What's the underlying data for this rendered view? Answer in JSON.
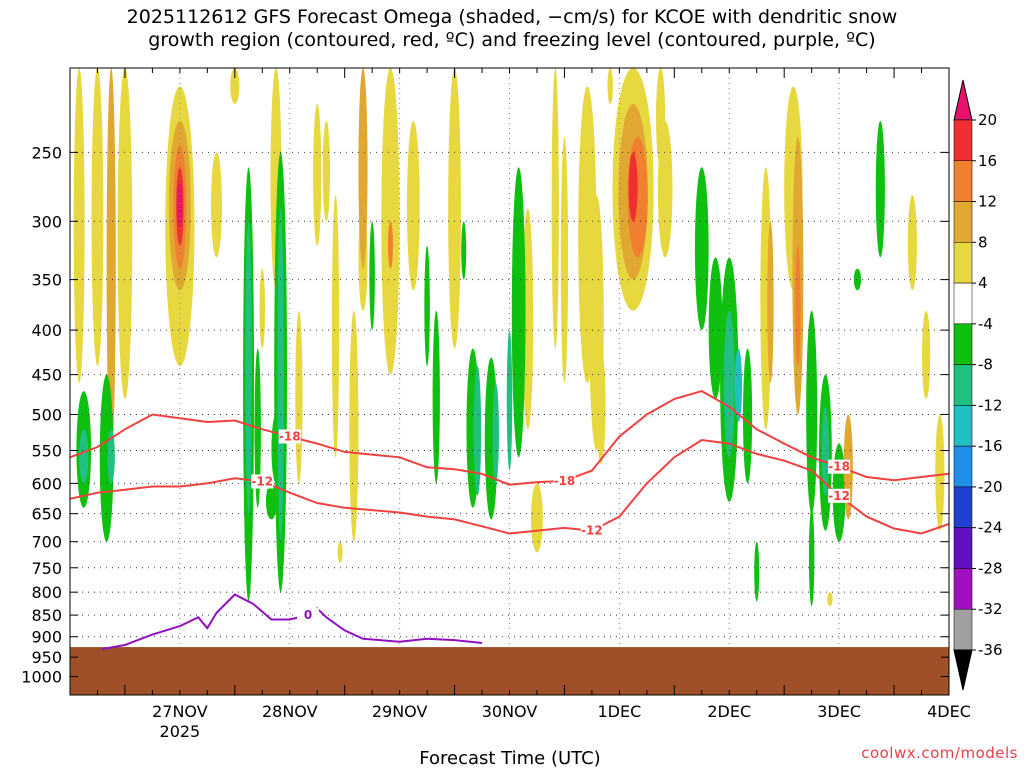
{
  "title": {
    "line1": "2025112612 GFS Forecast Omega (shaded, −cm/s) for KCOE with dendritic snow",
    "line2": "growth region (contoured, red, ºC) and freezing level (contoured, purple, ºC)"
  },
  "footer": "coolwx.com/models",
  "chart_data": {
    "type": "heatmap",
    "title": "2025112612 GFS Forecast Omega (shaded, −cm/s) for KCOE with dendritic snow growth region (contoured, red, ºC) and freezing level (contoured, purple, ºC)",
    "xlabel": "Forecast Time (UTC)",
    "ylabel": "",
    "x_range_hours": [
      -12,
      180
    ],
    "x_ticks": [
      {
        "label": "27NOV",
        "sublabel": "2025",
        "hour": 12
      },
      {
        "label": "28NOV",
        "hour": 36
      },
      {
        "label": "29NOV",
        "hour": 60
      },
      {
        "label": "30NOV",
        "hour": 84
      },
      {
        "label": "1DEC",
        "hour": 108
      },
      {
        "label": "2DEC",
        "hour": 132
      },
      {
        "label": "3DEC",
        "hour": 156
      },
      {
        "label": "4DEC",
        "hour": 180
      }
    ],
    "y_scale": "log",
    "y_range_hPa": [
      200,
      1050
    ],
    "y_ticks": [
      250,
      300,
      350,
      400,
      450,
      500,
      550,
      600,
      650,
      700,
      750,
      800,
      850,
      900,
      950,
      1000
    ],
    "grid": true,
    "colorbar": {
      "labels": [
        20,
        16,
        12,
        8,
        4,
        -4,
        -8,
        -12,
        -16,
        -20,
        -24,
        -28,
        -32,
        -36
      ],
      "colors": [
        "#e8116b",
        "#f03030",
        "#f08030",
        "#e0a830",
        "#e8d840",
        "#ffffff",
        "#10c010",
        "#20c080",
        "#20c0c0",
        "#2090e8",
        "#2040d0",
        "#6010c0",
        "#a010c0",
        "#a0a0a0",
        "#000000"
      ]
    },
    "surface_pressure_hPa": 925,
    "contours": [
      {
        "label": "-18",
        "color": "#f04040",
        "points": [
          [
            -12,
            560
          ],
          [
            -6,
            545
          ],
          [
            0,
            520
          ],
          [
            6,
            500
          ],
          [
            12,
            505
          ],
          [
            18,
            510
          ],
          [
            24,
            508
          ],
          [
            30,
            520
          ],
          [
            36,
            530
          ],
          [
            42,
            540
          ],
          [
            48,
            552
          ],
          [
            60,
            560
          ],
          [
            66,
            575
          ],
          [
            72,
            578
          ],
          [
            78,
            585
          ],
          [
            84,
            602
          ],
          [
            90,
            598
          ],
          [
            96,
            596
          ],
          [
            102,
            580
          ],
          [
            108,
            530
          ],
          [
            114,
            500
          ],
          [
            120,
            480
          ],
          [
            126,
            470
          ],
          [
            132,
            490
          ],
          [
            138,
            520
          ],
          [
            144,
            540
          ],
          [
            150,
            560
          ],
          [
            156,
            574
          ],
          [
            162,
            590
          ],
          [
            168,
            595
          ],
          [
            174,
            590
          ],
          [
            180,
            585
          ]
        ]
      },
      {
        "label": "-12",
        "color": "#f04040",
        "points": [
          [
            -12,
            625
          ],
          [
            -6,
            615
          ],
          [
            0,
            610
          ],
          [
            6,
            605
          ],
          [
            12,
            605
          ],
          [
            18,
            600
          ],
          [
            24,
            592
          ],
          [
            30,
            597
          ],
          [
            36,
            615
          ],
          [
            42,
            632
          ],
          [
            48,
            640
          ],
          [
            60,
            648
          ],
          [
            66,
            655
          ],
          [
            72,
            660
          ],
          [
            78,
            672
          ],
          [
            84,
            685
          ],
          [
            96,
            675
          ],
          [
            102,
            680
          ],
          [
            108,
            655
          ],
          [
            114,
            600
          ],
          [
            120,
            560
          ],
          [
            126,
            535
          ],
          [
            132,
            540
          ],
          [
            138,
            555
          ],
          [
            144,
            565
          ],
          [
            150,
            580
          ],
          [
            156,
            620
          ],
          [
            162,
            655
          ],
          [
            168,
            676
          ],
          [
            174,
            685
          ],
          [
            180,
            668
          ]
        ]
      },
      {
        "label": "0",
        "color": "#9010c0",
        "points": [
          [
            -5,
            930
          ],
          [
            0,
            920
          ],
          [
            6,
            895
          ],
          [
            12,
            875
          ],
          [
            16,
            855
          ],
          [
            18,
            880
          ],
          [
            20,
            845
          ],
          [
            24,
            805
          ],
          [
            28,
            825
          ],
          [
            32,
            860
          ],
          [
            36,
            860
          ],
          [
            40,
            850
          ],
          [
            42,
            835
          ],
          [
            44,
            855
          ],
          [
            48,
            885
          ],
          [
            52,
            905
          ],
          [
            60,
            912
          ],
          [
            66,
            905
          ],
          [
            72,
            908
          ],
          [
            78,
            915
          ]
        ]
      }
    ]
  }
}
